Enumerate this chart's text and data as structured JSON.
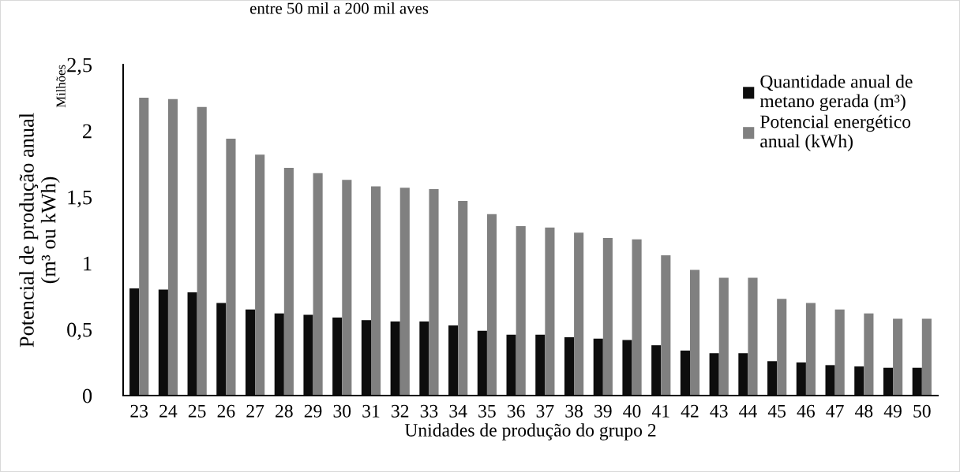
{
  "chart_data": {
    "type": "bar",
    "xlabel": "Unidades de produção do grupo 2",
    "ylabel": "Potencial de produção anual\n(m³ ou kWh)",
    "annotations": [
      "entre 50 mil a 200 mil aves",
      "Milhões"
    ],
    "categories": [
      "23",
      "24",
      "25",
      "26",
      "27",
      "28",
      "29",
      "30",
      "31",
      "32",
      "33",
      "34",
      "35",
      "36",
      "37",
      "38",
      "39",
      "40",
      "41",
      "42",
      "43",
      "44",
      "45",
      "46",
      "47",
      "48",
      "49",
      "50"
    ],
    "series": [
      {
        "name": "Quantidade anual de\nmetano gerada (m³)",
        "color": "#0d0d0d",
        "values": [
          0.81,
          0.8,
          0.78,
          0.7,
          0.65,
          0.62,
          0.61,
          0.59,
          0.57,
          0.56,
          0.56,
          0.53,
          0.49,
          0.46,
          0.46,
          0.44,
          0.43,
          0.42,
          0.38,
          0.34,
          0.32,
          0.32,
          0.26,
          0.25,
          0.23,
          0.22,
          0.21,
          0.21
        ]
      },
      {
        "name": "Potencial energético\nanual (kWh)",
        "color": "#808080",
        "values": [
          2.25,
          2.24,
          2.18,
          1.94,
          1.82,
          1.72,
          1.68,
          1.63,
          1.58,
          1.57,
          1.56,
          1.47,
          1.37,
          1.28,
          1.27,
          1.23,
          1.19,
          1.18,
          1.06,
          0.95,
          0.89,
          0.89,
          0.73,
          0.7,
          0.65,
          0.62,
          0.58,
          0.58
        ]
      }
    ],
    "ylim": [
      0,
      2.5
    ],
    "yticks": [
      0,
      {
        "value": 0.5,
        "label": "0,5"
      },
      1,
      {
        "value": 1.5,
        "label": "1,5"
      },
      2,
      {
        "value": 2.5,
        "label": "2,5"
      }
    ],
    "grid": false,
    "legend": "top right"
  }
}
